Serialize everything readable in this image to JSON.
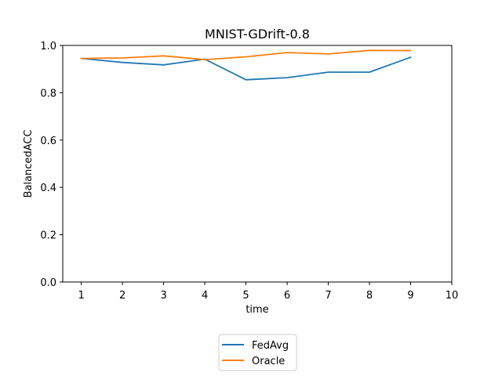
{
  "chart_data": {
    "type": "line",
    "title": "MNIST-GDrift-0.8",
    "xlabel": "time",
    "ylabel": "BalancedACC",
    "xlim": [
      0.55,
      10.0
    ],
    "ylim": [
      0.0,
      1.0
    ],
    "xticks": [
      1,
      2,
      3,
      4,
      5,
      6,
      7,
      8,
      9,
      10
    ],
    "yticks": [
      "0.0",
      "0.2",
      "0.4",
      "0.6",
      "0.8",
      "1.0"
    ],
    "grid": false,
    "legend_position": "bottom-center-outside",
    "x": [
      1,
      2,
      3,
      4,
      5,
      6,
      7,
      8,
      9
    ],
    "series": [
      {
        "name": "FedAvg",
        "color": "#1f77b4",
        "values": [
          0.945,
          0.928,
          0.918,
          0.942,
          0.855,
          0.864,
          0.887,
          0.887,
          0.95
        ]
      },
      {
        "name": "Oracle",
        "color": "#ff7f0e",
        "values": [
          0.945,
          0.947,
          0.956,
          0.94,
          0.952,
          0.97,
          0.964,
          0.979,
          0.978
        ]
      }
    ]
  }
}
